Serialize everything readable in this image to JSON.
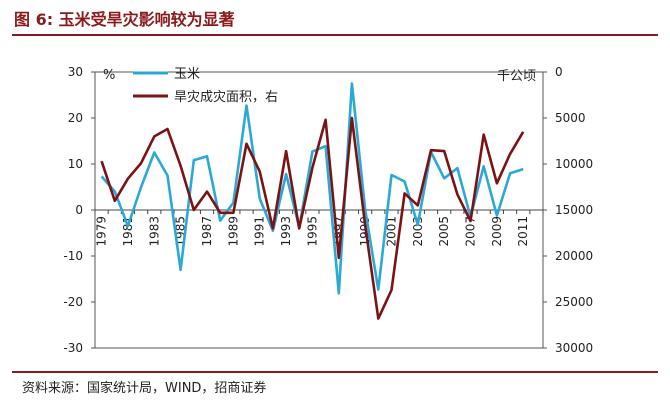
{
  "page": {
    "title": "图 6:  玉米受旱灾影响较为显著",
    "source": "资料来源：国家统计局，WIND，招商证券"
  },
  "chart_data": {
    "type": "line",
    "x": [
      "1979",
      "1980",
      "1981",
      "1982",
      "1983",
      "1984",
      "1985",
      "1986",
      "1987",
      "1988",
      "1989",
      "1990",
      "1991",
      "1992",
      "1993",
      "1994",
      "1995",
      "1996",
      "1997",
      "1998",
      "1999",
      "2000",
      "2001",
      "2002",
      "2003",
      "2004",
      "2005",
      "2006",
      "2007",
      "2008",
      "2009",
      "2010",
      "2011",
      "2012"
    ],
    "x_tick_labels": [
      "1979",
      "1981",
      "1983",
      "1985",
      "1987",
      "1989",
      "1991",
      "1993",
      "1995",
      "1997",
      "1999",
      "2001",
      "2003",
      "2005",
      "2007",
      "2009",
      "2011"
    ],
    "left_axis": {
      "unit": "%",
      "ylim": [
        -30,
        30
      ],
      "ticks": [
        30,
        20,
        10,
        0,
        -10,
        -20,
        -30
      ]
    },
    "right_axis": {
      "unit": "千公顷",
      "ylim": [
        0,
        30000
      ],
      "inverted": true,
      "ticks": [
        0,
        5000,
        10000,
        15000,
        20000,
        25000,
        30000
      ]
    },
    "series": [
      {
        "name": "玉米",
        "axis": "left",
        "color": "#2BA9D6",
        "values": [
          7.3,
          4.0,
          -3.5,
          5.0,
          12.5,
          7.5,
          -13.0,
          10.8,
          11.7,
          -2.3,
          1.6,
          22.7,
          2.5,
          -4.5,
          7.8,
          -3.8,
          12.7,
          13.9,
          -18.1,
          27.5,
          0.2,
          -17.3,
          7.6,
          6.2,
          -3.2,
          12.6,
          6.9,
          9.1,
          -1.5,
          9.5,
          -1.2,
          8.0,
          8.9,
          null
        ]
      },
      {
        "name": "旱灾成灾面积，右",
        "axis": "right",
        "color": "#7B1214",
        "values": [
          9700,
          14000,
          11600,
          9900,
          7000,
          6200,
          10200,
          15000,
          13000,
          15300,
          15300,
          7800,
          10800,
          17000,
          8600,
          17000,
          10400,
          5200,
          20200,
          5000,
          16600,
          26800,
          23700,
          13200,
          14500,
          8500,
          8600,
          13300,
          16200,
          6800,
          12100,
          8900,
          6500,
          null
        ]
      }
    ]
  }
}
